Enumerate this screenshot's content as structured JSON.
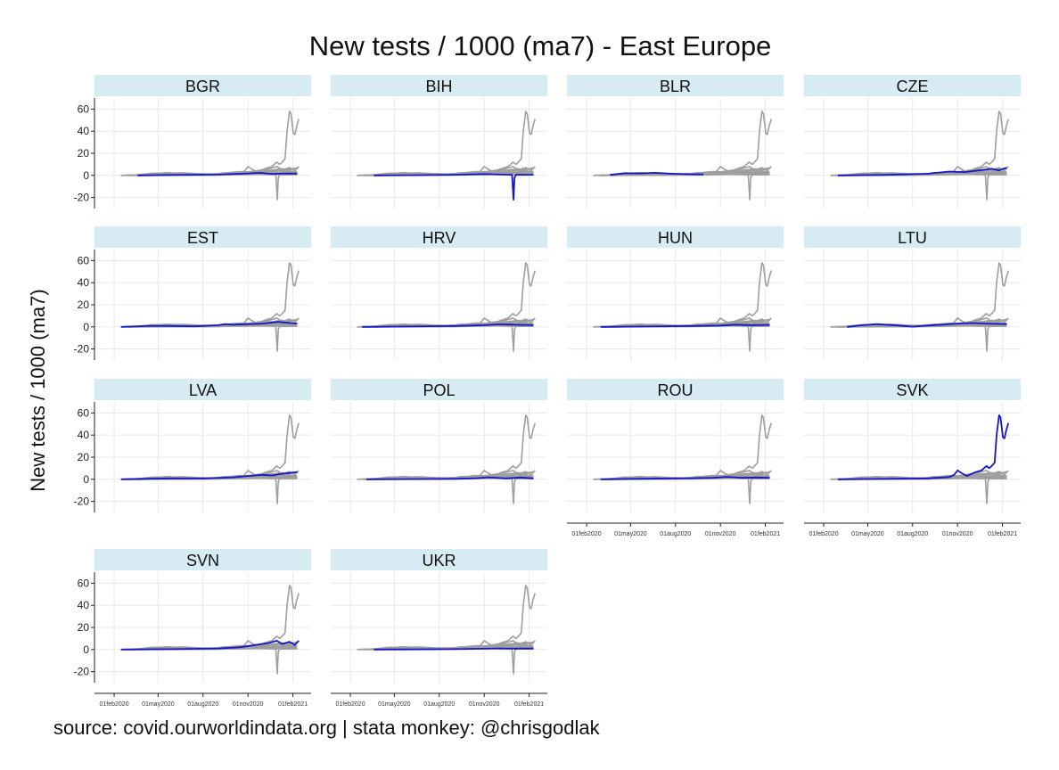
{
  "chart_data": {
    "type": "line",
    "title": "New tests / 1000 (ma7) - East Europe",
    "ylabel": "New tests / 1000 (ma7)",
    "caption": "source: covid.ourworldindata.org | stata monkey: @chrisgodlak",
    "ylim": [
      -30,
      70
    ],
    "y_ticks": [
      -20,
      0,
      20,
      40,
      60
    ],
    "y_tick_labels": [
      "-20",
      "0",
      "20",
      "40",
      "60"
    ],
    "x_ticks": [
      "2020-02-01",
      "2020-05-01",
      "2020-08-01",
      "2020-11-01",
      "2021-02-01"
    ],
    "x_tick_labels": [
      "01feb2020",
      "01may2020",
      "01aug2020",
      "01nov2020",
      "01feb2021"
    ],
    "xlim": [
      "2020-01-10",
      "2021-02-20"
    ],
    "grid": true,
    "colors": {
      "strip_bg": "#d6ebf2",
      "highlight": "#1515c8",
      "others": "#9e9e9e",
      "grid": "#e8e8e8"
    },
    "panels": [
      "BGR",
      "BIH",
      "BLR",
      "CZE",
      "EST",
      "HRV",
      "HUN",
      "LTU",
      "LVA",
      "POL",
      "ROU",
      "SVK",
      "SVN",
      "UKR"
    ],
    "series": [
      {
        "name": "BGR",
        "points": [
          [
            "2020-03-20",
            0
          ],
          [
            "2020-06-01",
            0.4
          ],
          [
            "2020-09-01",
            0.7
          ],
          [
            "2020-11-01",
            1.8
          ],
          [
            "2020-11-25",
            2.3
          ],
          [
            "2020-12-20",
            1.4
          ],
          [
            "2021-01-20",
            1.8
          ],
          [
            "2021-02-10",
            1.6
          ]
        ]
      },
      {
        "name": "BIH",
        "points": [
          [
            "2020-03-20",
            0
          ],
          [
            "2020-06-01",
            0.2
          ],
          [
            "2020-09-01",
            0.6
          ],
          [
            "2020-11-01",
            1.2
          ],
          [
            "2020-12-20",
            0.6
          ],
          [
            "2020-12-28",
            0.6
          ],
          [
            "2020-12-31",
            -22
          ],
          [
            "2021-01-01",
            -12
          ],
          [
            "2021-01-02",
            -2
          ],
          [
            "2021-01-05",
            0.5
          ],
          [
            "2021-02-10",
            0.6
          ]
        ]
      },
      {
        "name": "BLR",
        "points": [
          [
            "2020-03-20",
            0.5
          ],
          [
            "2020-04-20",
            2
          ],
          [
            "2020-05-20",
            1.8
          ],
          [
            "2020-06-20",
            2.3
          ],
          [
            "2020-07-20",
            1.6
          ],
          [
            "2020-08-20",
            1.2
          ],
          [
            "2020-09-27",
            0.8
          ]
        ]
      },
      {
        "name": "CZE",
        "points": [
          [
            "2020-03-01",
            0
          ],
          [
            "2020-06-01",
            0.4
          ],
          [
            "2020-09-01",
            1.5
          ],
          [
            "2020-10-15",
            3.5
          ],
          [
            "2020-11-15",
            3
          ],
          [
            "2020-12-15",
            4.5
          ],
          [
            "2021-01-10",
            6
          ],
          [
            "2021-01-25",
            4.5
          ],
          [
            "2021-02-10",
            7
          ]
        ]
      },
      {
        "name": "EST",
        "points": [
          [
            "2020-02-15",
            0
          ],
          [
            "2020-04-15",
            1
          ],
          [
            "2020-06-01",
            0.8
          ],
          [
            "2020-07-15",
            0.5
          ],
          [
            "2020-09-01",
            1.5
          ],
          [
            "2020-09-15",
            2.5
          ],
          [
            "2020-10-01",
            2
          ],
          [
            "2020-11-01",
            2.5
          ],
          [
            "2020-12-01",
            3
          ],
          [
            "2021-01-01",
            4.5
          ],
          [
            "2021-02-10",
            3
          ]
        ]
      },
      {
        "name": "HRV",
        "points": [
          [
            "2020-02-25",
            0
          ],
          [
            "2020-06-01",
            0.3
          ],
          [
            "2020-09-01",
            0.8
          ],
          [
            "2020-11-01",
            1.5
          ],
          [
            "2020-12-01",
            2.3
          ],
          [
            "2021-01-01",
            2
          ],
          [
            "2021-02-10",
            1.5
          ]
        ]
      },
      {
        "name": "HUN",
        "points": [
          [
            "2020-03-01",
            0
          ],
          [
            "2020-06-01",
            0.3
          ],
          [
            "2020-09-01",
            0.8
          ],
          [
            "2020-11-01",
            1.2
          ],
          [
            "2020-12-01",
            2
          ],
          [
            "2021-01-01",
            1.6
          ],
          [
            "2021-02-10",
            1.8
          ]
        ]
      },
      {
        "name": "LTU",
        "points": [
          [
            "2020-03-20",
            0
          ],
          [
            "2020-04-20",
            1.5
          ],
          [
            "2020-05-20",
            2.5
          ],
          [
            "2020-07-01",
            1.3
          ],
          [
            "2020-08-01",
            0.2
          ],
          [
            "2020-09-01",
            1.3
          ],
          [
            "2020-10-01",
            2
          ],
          [
            "2020-11-01",
            3
          ],
          [
            "2020-12-01",
            3.5
          ],
          [
            "2021-01-01",
            3
          ],
          [
            "2021-02-10",
            2.5
          ]
        ]
      },
      {
        "name": "LVA",
        "points": [
          [
            "2020-02-15",
            0
          ],
          [
            "2020-04-15",
            0.5
          ],
          [
            "2020-06-01",
            0.8
          ],
          [
            "2020-08-01",
            0.7
          ],
          [
            "2020-10-01",
            1.8
          ],
          [
            "2020-11-01",
            3
          ],
          [
            "2020-12-01",
            4
          ],
          [
            "2020-12-20",
            3.5
          ],
          [
            "2021-01-10",
            5
          ],
          [
            "2021-02-10",
            6.5
          ]
        ]
      },
      {
        "name": "POL",
        "points": [
          [
            "2020-03-05",
            0
          ],
          [
            "2020-06-01",
            0.2
          ],
          [
            "2020-09-01",
            0.4
          ],
          [
            "2020-10-15",
            1
          ],
          [
            "2020-11-10",
            1.8
          ],
          [
            "2020-12-15",
            0.8
          ],
          [
            "2021-01-15",
            1.6
          ],
          [
            "2021-02-10",
            0.8
          ]
        ]
      },
      {
        "name": "ROU",
        "points": [
          [
            "2020-03-01",
            0
          ],
          [
            "2020-06-01",
            0.5
          ],
          [
            "2020-09-01",
            1
          ],
          [
            "2020-10-15",
            1.4
          ],
          [
            "2020-11-15",
            2.2
          ],
          [
            "2020-12-15",
            1.4
          ],
          [
            "2021-01-15",
            1.6
          ],
          [
            "2021-02-10",
            1.4
          ]
        ]
      },
      {
        "name": "SVK",
        "points": [
          [
            "2020-03-01",
            0
          ],
          [
            "2020-06-01",
            0.3
          ],
          [
            "2020-09-01",
            0.8
          ],
          [
            "2020-10-15",
            2
          ],
          [
            "2020-10-25",
            4
          ],
          [
            "2020-11-01",
            8
          ],
          [
            "2020-11-08",
            6
          ],
          [
            "2020-11-20",
            3
          ],
          [
            "2020-12-05",
            6
          ],
          [
            "2020-12-20",
            8
          ],
          [
            "2020-12-30",
            12
          ],
          [
            "2021-01-05",
            10
          ],
          [
            "2021-01-10",
            12
          ],
          [
            "2021-01-16",
            15
          ],
          [
            "2021-01-20",
            40
          ],
          [
            "2021-01-25",
            58
          ],
          [
            "2021-01-28",
            56
          ],
          [
            "2021-02-02",
            38
          ],
          [
            "2021-02-05",
            37
          ],
          [
            "2021-02-09",
            45
          ],
          [
            "2021-02-13",
            51
          ]
        ]
      },
      {
        "name": "SVN",
        "points": [
          [
            "2020-02-15",
            0
          ],
          [
            "2020-06-01",
            0.3
          ],
          [
            "2020-09-01",
            1
          ],
          [
            "2020-10-15",
            2
          ],
          [
            "2020-11-15",
            4
          ],
          [
            "2020-12-15",
            6
          ],
          [
            "2020-12-30",
            8
          ],
          [
            "2021-01-10",
            5
          ],
          [
            "2021-01-25",
            7
          ],
          [
            "2021-02-05",
            4
          ],
          [
            "2021-02-13",
            8
          ]
        ]
      },
      {
        "name": "UKR",
        "points": [
          [
            "2020-03-20",
            0
          ],
          [
            "2020-06-01",
            0.1
          ],
          [
            "2020-09-01",
            0.3
          ],
          [
            "2020-11-01",
            0.7
          ],
          [
            "2020-12-01",
            1
          ],
          [
            "2021-01-01",
            0.8
          ],
          [
            "2021-02-10",
            0.9
          ]
        ]
      }
    ]
  }
}
